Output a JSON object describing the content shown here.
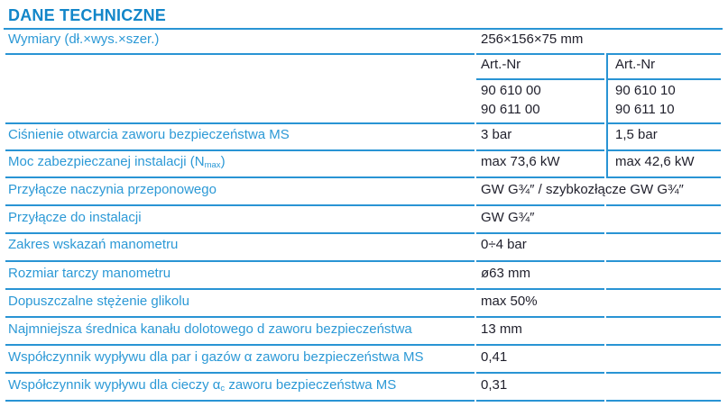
{
  "title": "DANE TECHNICZNE",
  "colors": {
    "title_blue": "#1286c9",
    "label_blue": "#2c99d6",
    "line_blue": "#2994d4",
    "value_dark": "#1f1f2b"
  },
  "table": {
    "header": {
      "art_nr_left": "Art.-Nr",
      "art_nr_right": "Art.-Nr"
    },
    "rows": {
      "dimensions": {
        "label": "Wymiary (dł.×wys.×szer.)",
        "value": "256×156×75 mm"
      },
      "art_numbers": {
        "left_line1": "90 610 00",
        "left_line2": "90 611 00",
        "right_line1": "90 610 10",
        "right_line2": "90 611 10"
      },
      "opening_pressure": {
        "label": "Ciśnienie otwarcia zaworu bezpieczeństwa MS",
        "value_left": "3 bar",
        "value_right": "1,5 bar"
      },
      "max_power": {
        "label_prefix": "Moc zabezpieczanej instalacji (N",
        "label_sub": "max",
        "label_suffix": ")",
        "value_left": "max 73,6 kW",
        "value_right": "max 42,6 kW"
      },
      "vessel_connection": {
        "label": "Przyłącze naczynia przeponowego",
        "value": "GW G¾″ / szybkozłącze GW G¾″"
      },
      "installation_connection": {
        "label": "Przyłącze do instalacji",
        "value": "GW G¾″"
      },
      "gauge_range": {
        "label": "Zakres wskazań manometru",
        "value": "0÷4 bar"
      },
      "gauge_dial_size": {
        "label": "Rozmiar tarczy manometru",
        "value": "ø63 mm"
      },
      "glycol_concentration": {
        "label": "Dopuszczalne stężenie glikolu",
        "value": "max 50%"
      },
      "inlet_diameter": {
        "label": "Najmniejsza średnica kanału dolotowego d zaworu bezpieczeństwa",
        "value": "13 mm"
      },
      "outflow_coeff_gas": {
        "label": "Współczynnik wypływu dla par i gazów α zaworu bezpieczeństwa MS",
        "value": "0,41"
      },
      "outflow_coeff_liquid": {
        "label_prefix": "Współczynnik wypływu dla cieczy α",
        "label_sub": "c",
        "label_suffix": " zaworu bezpieczeństwa MS",
        "value": "0,31"
      }
    }
  }
}
